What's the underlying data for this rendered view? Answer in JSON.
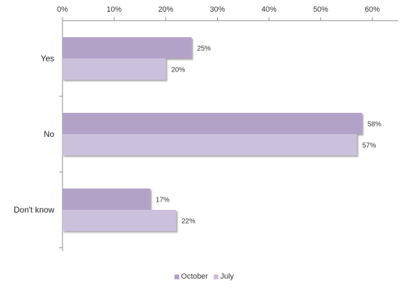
{
  "chart_data": {
    "type": "bar",
    "orientation": "horizontal",
    "categories": [
      "Yes",
      "No",
      "Don't know"
    ],
    "series": [
      {
        "name": "October",
        "values": [
          25,
          58,
          17
        ],
        "color": "#b3a2c8"
      },
      {
        "name": "July",
        "values": [
          20,
          57,
          22
        ],
        "color": "#ccc1dc"
      }
    ],
    "value_labels": [
      [
        "25%",
        "58%",
        "17%"
      ],
      [
        "20%",
        "57%",
        "22%"
      ]
    ],
    "xlim": [
      0,
      60
    ],
    "xticks": [
      0,
      10,
      20,
      30,
      40,
      50,
      60
    ],
    "xtick_labels": [
      "0%",
      "10%",
      "20%",
      "30%",
      "40%",
      "50%",
      "60%"
    ],
    "axis_position": "top",
    "grid": false,
    "legend_position": "bottom",
    "title": "",
    "xlabel": "",
    "ylabel": ""
  }
}
